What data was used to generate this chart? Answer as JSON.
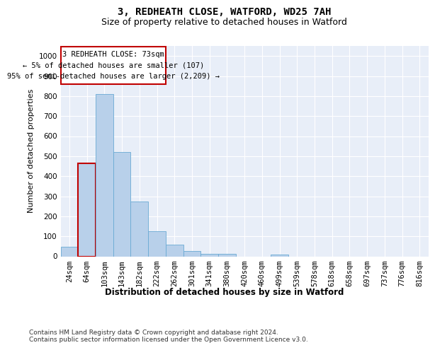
{
  "title": "3, REDHEATH CLOSE, WATFORD, WD25 7AH",
  "subtitle": "Size of property relative to detached houses in Watford",
  "xlabel": "Distribution of detached houses by size in Watford",
  "ylabel": "Number of detached properties",
  "categories": [
    "24sqm",
    "64sqm",
    "103sqm",
    "143sqm",
    "182sqm",
    "222sqm",
    "262sqm",
    "301sqm",
    "341sqm",
    "380sqm",
    "420sqm",
    "460sqm",
    "499sqm",
    "539sqm",
    "578sqm",
    "618sqm",
    "658sqm",
    "697sqm",
    "737sqm",
    "776sqm",
    "816sqm"
  ],
  "values": [
    47,
    463,
    810,
    521,
    272,
    126,
    59,
    25,
    14,
    14,
    0,
    0,
    10,
    0,
    0,
    0,
    0,
    0,
    0,
    0,
    0
  ],
  "bar_color": "#b8d0ea",
  "bar_edge_color": "#6aaad4",
  "highlight_bar_index": 1,
  "highlight_bar_edge_color": "#c00000",
  "annotation_text": "3 REDHEATH CLOSE: 73sqm\n← 5% of detached houses are smaller (107)\n95% of semi-detached houses are larger (2,209) →",
  "annotation_box_color": "#ffffff",
  "annotation_box_edge_color": "#c00000",
  "ylim": [
    0,
    1050
  ],
  "yticks": [
    0,
    100,
    200,
    300,
    400,
    500,
    600,
    700,
    800,
    900,
    1000
  ],
  "background_color": "#e8eef8",
  "footer_text": "Contains HM Land Registry data © Crown copyright and database right 2024.\nContains public sector information licensed under the Open Government Licence v3.0.",
  "title_fontsize": 10,
  "subtitle_fontsize": 9,
  "xlabel_fontsize": 8.5,
  "ylabel_fontsize": 8,
  "tick_fontsize": 7.5,
  "annotation_fontsize": 7.5,
  "footer_fontsize": 6.5
}
